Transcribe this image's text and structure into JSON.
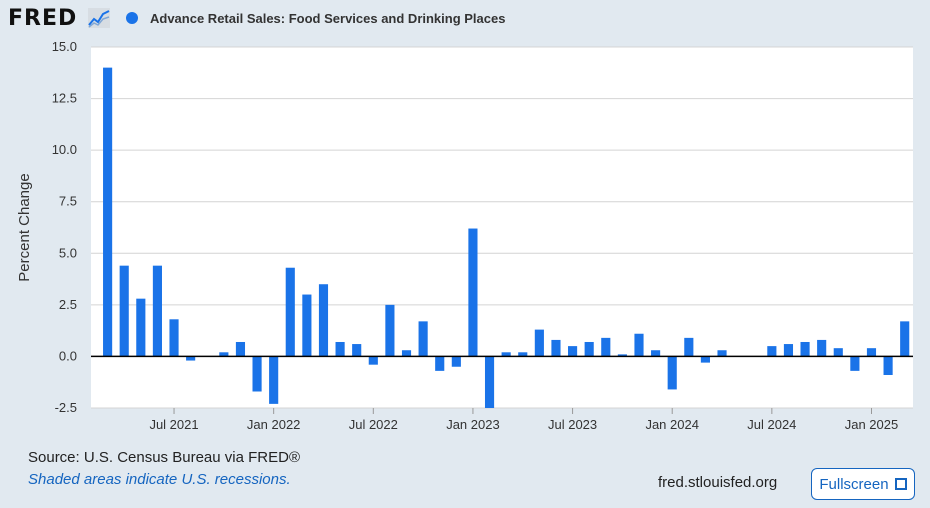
{
  "header": {
    "logo_text": "FRED",
    "logo_icon": "line-chart-icon",
    "legend_label": "Advance Retail Sales: Food Services and Drinking Places",
    "legend_color": "#1a73e8"
  },
  "chart_data": {
    "type": "bar",
    "title": "",
    "ylabel": "Percent Change",
    "ylim": [
      -2.5,
      15.0
    ],
    "y_ticks": [
      "15.0",
      "12.5",
      "10.0",
      "7.5",
      "5.0",
      "2.5",
      "0.0",
      "-2.5"
    ],
    "y_tick_values": [
      15.0,
      12.5,
      10.0,
      7.5,
      5.0,
      2.5,
      0.0,
      -2.5
    ],
    "x_ticks": [
      {
        "label": "Jul 2021",
        "date": "2021-07"
      },
      {
        "label": "Jan 2022",
        "date": "2022-01"
      },
      {
        "label": "Jul 2022",
        "date": "2022-07"
      },
      {
        "label": "Jan 2023",
        "date": "2023-01"
      },
      {
        "label": "Jul 2023",
        "date": "2023-07"
      },
      {
        "label": "Jan 2024",
        "date": "2024-01"
      },
      {
        "label": "Jul 2024",
        "date": "2024-07"
      },
      {
        "label": "Jan 2025",
        "date": "2025-01"
      }
    ],
    "x_range": [
      "2021-02",
      "2025-03"
    ],
    "bar_color": "#1a73e8",
    "grid": true,
    "series": [
      {
        "name": "Advance Retail Sales: Food Services and Drinking Places",
        "x": [
          "2021-03",
          "2021-04",
          "2021-05",
          "2021-06",
          "2021-07",
          "2021-08",
          "2021-09",
          "2021-10",
          "2021-11",
          "2021-12",
          "2022-01",
          "2022-02",
          "2022-03",
          "2022-04",
          "2022-05",
          "2022-06",
          "2022-07",
          "2022-08",
          "2022-09",
          "2022-10",
          "2022-11",
          "2022-12",
          "2023-01",
          "2023-02",
          "2023-03",
          "2023-04",
          "2023-05",
          "2023-06",
          "2023-07",
          "2023-08",
          "2023-09",
          "2023-10",
          "2023-11",
          "2023-12",
          "2024-01",
          "2024-02",
          "2024-03",
          "2024-04",
          "2024-05",
          "2024-06",
          "2024-07",
          "2024-08",
          "2024-09",
          "2024-10",
          "2024-11",
          "2024-12",
          "2025-01",
          "2025-02",
          "2025-03"
        ],
        "values": [
          14.0,
          4.4,
          2.8,
          4.4,
          1.8,
          -0.2,
          0.0,
          0.2,
          0.7,
          -1.7,
          -2.3,
          4.3,
          3.0,
          3.5,
          0.7,
          0.6,
          -0.4,
          2.5,
          0.3,
          1.7,
          -0.7,
          -0.5,
          6.2,
          -2.6,
          0.2,
          0.2,
          1.3,
          0.8,
          0.5,
          0.7,
          0.9,
          0.1,
          1.1,
          0.3,
          -1.6,
          0.9,
          -0.3,
          0.3,
          0.0,
          0.0,
          0.5,
          0.6,
          0.7,
          0.8,
          0.4,
          -0.7,
          0.4,
          -0.9,
          1.7
        ]
      }
    ]
  },
  "footer": {
    "source": "Source: U.S. Census Bureau via FRED®",
    "shaded_note": "Shaded areas indicate U.S. recessions.",
    "site": "fred.stlouisfed.org",
    "fullscreen_label": "Fullscreen",
    "fullscreen_icon": "expand-icon"
  }
}
